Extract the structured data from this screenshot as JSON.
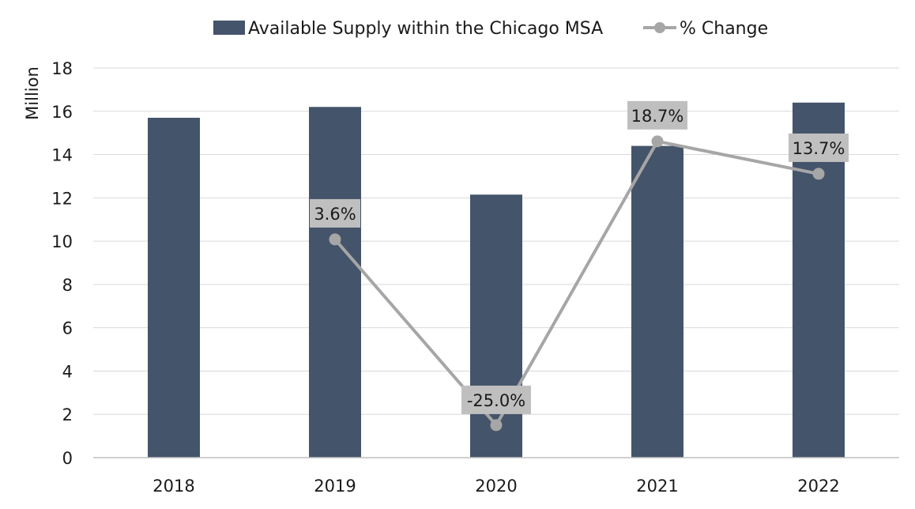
{
  "chart_data": {
    "type": "bar",
    "categories": [
      "2018",
      "2019",
      "2020",
      "2021",
      "2022"
    ],
    "series": [
      {
        "name": "Available Supply within the Chicago MSA",
        "kind": "bar",
        "axis": "left",
        "color": "#44546a",
        "values": [
          15.7,
          16.2,
          12.15,
          14.4,
          16.4
        ]
      },
      {
        "name": "% Change",
        "kind": "line",
        "axis": "secondary",
        "color": "#a6a6a6",
        "values": [
          null,
          3.6,
          -25.0,
          18.7,
          13.7
        ],
        "labels": [
          "",
          "3.6%",
          "-25.0%",
          "18.7%",
          "13.7%"
        ]
      }
    ],
    "ylabel": "Million",
    "ylim": [
      0,
      18
    ],
    "yticks": [
      "0",
      "2",
      "4",
      "6",
      "8",
      "10",
      "12",
      "14",
      "16",
      "18"
    ],
    "secondary_ylim": [
      -30,
      30
    ],
    "grid": true,
    "legend": "top-center"
  }
}
